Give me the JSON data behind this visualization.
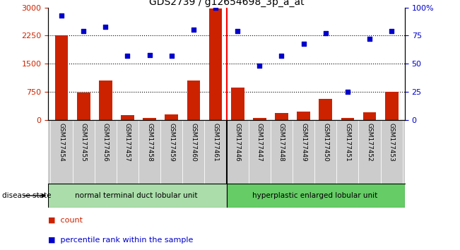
{
  "title": "GDS2739 / g12654698_3p_a_at",
  "samples": [
    "GSM177454",
    "GSM177455",
    "GSM177456",
    "GSM177457",
    "GSM177458",
    "GSM177459",
    "GSM177460",
    "GSM177461",
    "GSM177446",
    "GSM177447",
    "GSM177448",
    "GSM177449",
    "GSM177450",
    "GSM177451",
    "GSM177452",
    "GSM177453"
  ],
  "bar_values": [
    2250,
    730,
    1050,
    130,
    60,
    140,
    1050,
    2980,
    870,
    60,
    180,
    220,
    570,
    50,
    200,
    750
  ],
  "dot_values": [
    93,
    79,
    83,
    57,
    58,
    57,
    80,
    100,
    79,
    48,
    57,
    68,
    77,
    25,
    72,
    79
  ],
  "group1_label": "normal terminal duct lobular unit",
  "group2_label": "hyperplastic enlarged lobular unit",
  "group1_count": 8,
  "group2_count": 8,
  "bar_color": "#cc2200",
  "dot_color": "#0000cc",
  "group1_color": "#aaddaa",
  "group2_color": "#66cc66",
  "left_yticks": [
    0,
    750,
    1500,
    2250,
    3000
  ],
  "right_yticks": [
    0,
    25,
    50,
    75,
    100
  ],
  "ylim_left": [
    0,
    3000
  ],
  "ylim_right": [
    0,
    100
  ],
  "legend_count_label": "count",
  "legend_pct_label": "percentile rank within the sample",
  "disease_state_label": "disease state"
}
